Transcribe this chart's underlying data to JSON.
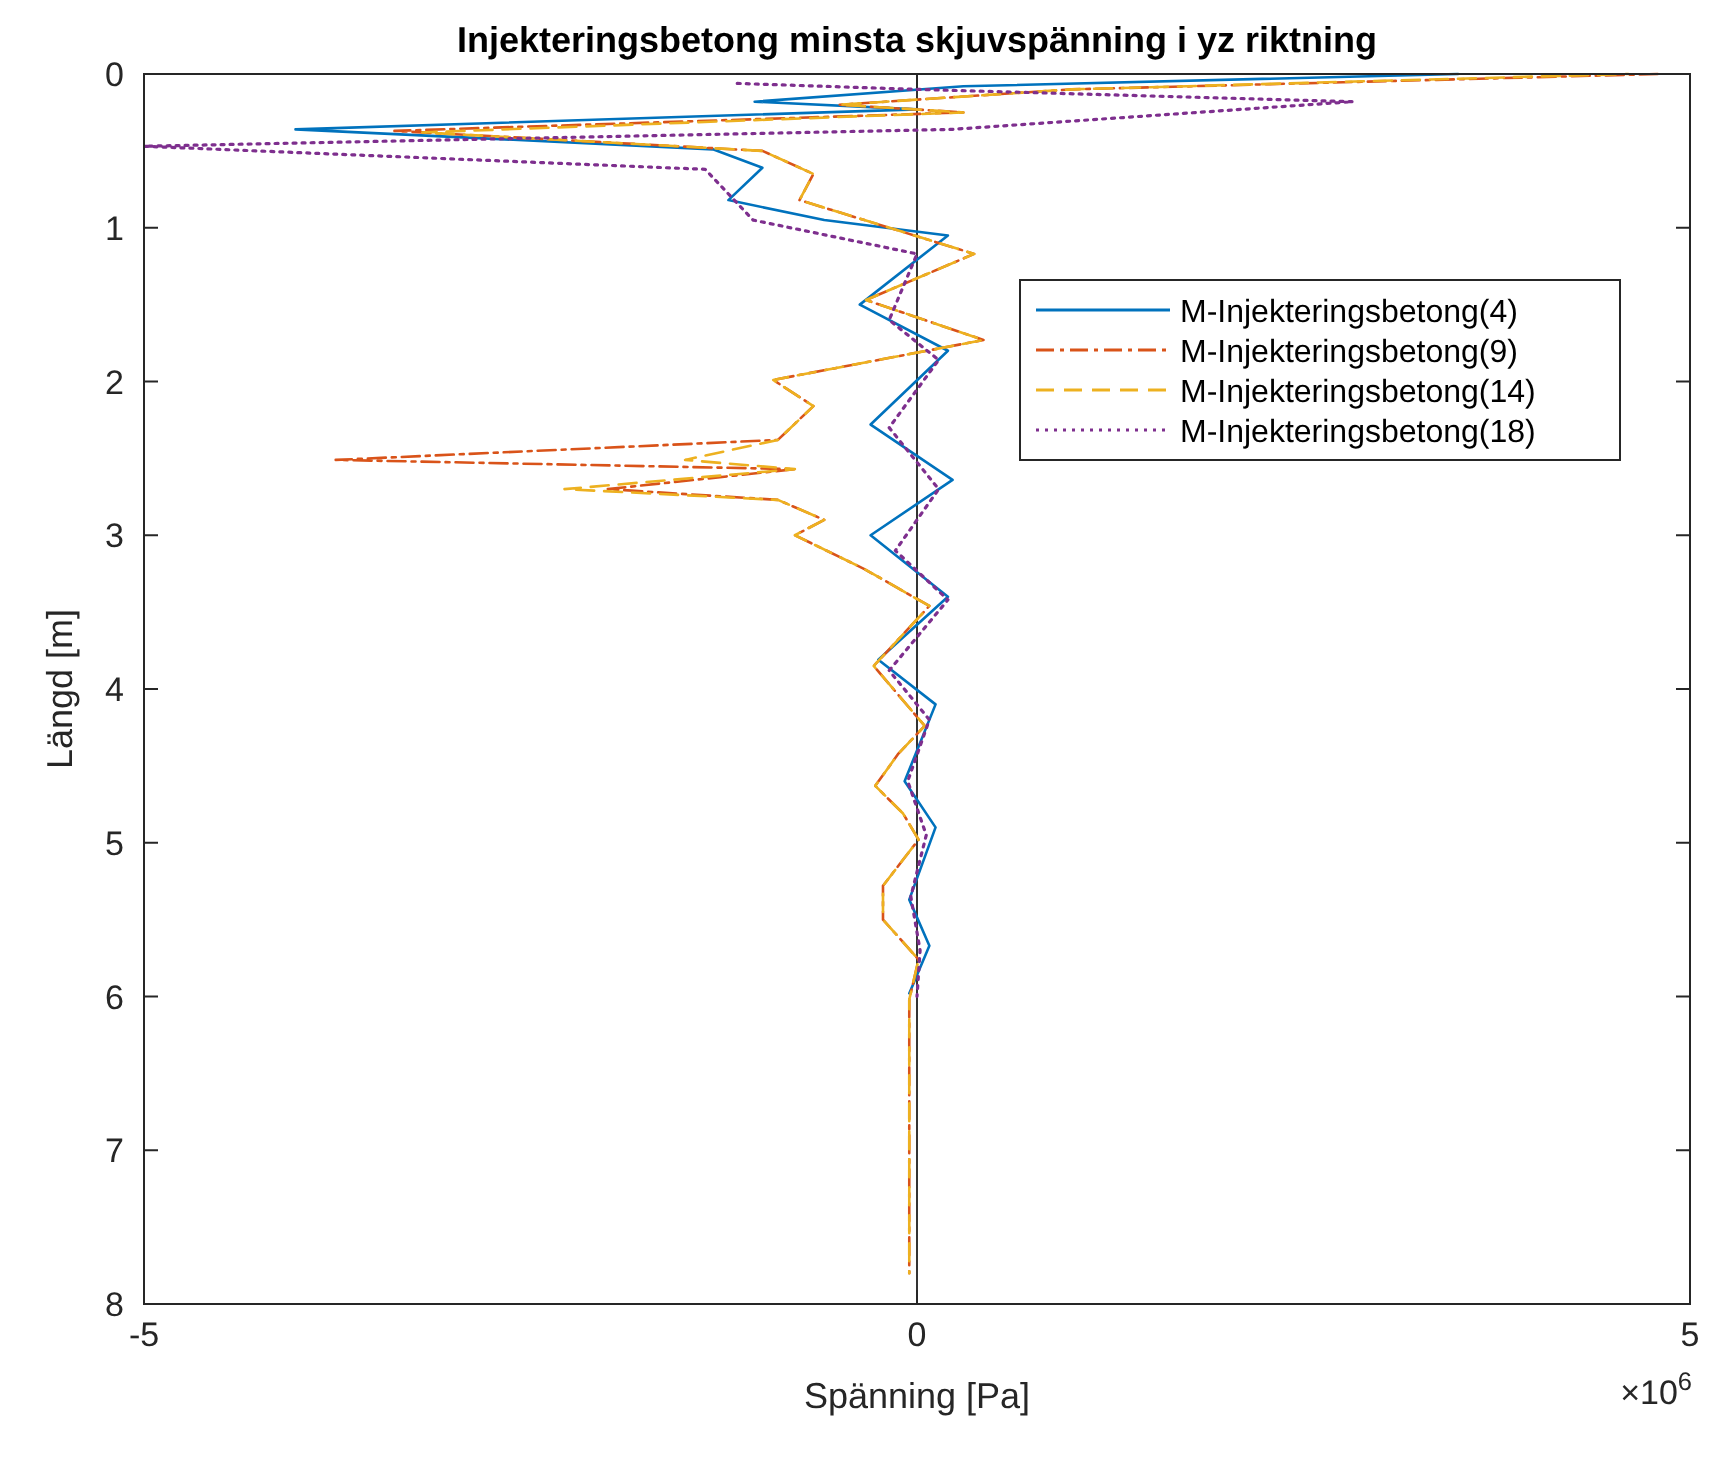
{
  "chart_data": {
    "type": "line",
    "title": "Injekteringsbetong minsta skjuvspänning i yz riktning",
    "xlabel": "Spänning [Pa]",
    "ylabel": "Längd [m]",
    "xlim": [
      -5,
      5
    ],
    "xticks": [
      -5,
      0,
      5
    ],
    "ylim": [
      8,
      0
    ],
    "yticks": [
      0,
      1,
      2,
      3,
      4,
      5,
      6,
      7,
      8
    ],
    "grid": false,
    "legend": "right",
    "annotations": [
      "×10$^{6}$"
    ],
    "ref_lines": [
      {
        "axis": "x",
        "value": 0,
        "color": "#000000"
      }
    ],
    "series": [
      {
        "name": "M-Injekteringsbetong(4)",
        "color": "#0072bd",
        "line_style": "solid",
        "x": [
          3.5,
          0.3,
          -1.05,
          0,
          -4.02,
          -1.32,
          -1.0,
          -1.22,
          -0.6,
          0.2,
          -0.37,
          0.2,
          -0.3,
          0.23,
          -0.3,
          0.2,
          -0.25,
          0.12,
          -0.08,
          0.12,
          -0.05,
          0.08,
          -0.05
        ],
        "values": [
          0,
          0.08,
          0.18,
          0.23,
          0.36,
          0.49,
          0.61,
          0.82,
          0.95,
          1.05,
          1.5,
          1.8,
          2.28,
          2.64,
          3.0,
          3.4,
          3.81,
          4.1,
          4.6,
          4.9,
          5.37,
          5.67,
          5.98
        ]
      },
      {
        "name": "M-Injekteringsbetong(9)",
        "color": "#d95319",
        "line_style": "dashdot",
        "x": [
          4.8,
          1.0,
          -0.5,
          0.3,
          -3.38,
          -1.0,
          -0.67,
          -0.76,
          0.37,
          -0.33,
          0.43,
          -0.93,
          -0.67,
          -0.9,
          -3.76,
          -0.79,
          -2.0,
          -0.9,
          -0.6,
          -0.79,
          -0.34,
          0.08,
          -0.28,
          0.05,
          -0.12,
          -0.27,
          -0.09,
          0.01,
          -0.22,
          -0.22,
          0.01,
          -0.05,
          -0.05
        ],
        "values": [
          0,
          0.1,
          0.2,
          0.25,
          0.37,
          0.5,
          0.65,
          0.82,
          1.17,
          1.47,
          1.73,
          1.99,
          2.16,
          2.38,
          2.51,
          2.57,
          2.7,
          2.77,
          2.9,
          3.0,
          3.22,
          3.46,
          3.85,
          4.24,
          4.42,
          4.63,
          4.81,
          4.98,
          5.28,
          5.5,
          5.76,
          6.02,
          7.8
        ]
      },
      {
        "name": "M-Injekteringsbetong(14)",
        "color": "#edb120",
        "line_style": "dashed",
        "x": [
          4.6,
          1.0,
          -0.5,
          0.3,
          -3.2,
          -1.0,
          -0.67,
          -0.76,
          0.37,
          -0.33,
          0.43,
          -0.93,
          -0.67,
          -0.9,
          -1.5,
          -0.79,
          -2.28,
          -0.9,
          -0.6,
          -0.79,
          -0.34,
          0.08,
          -0.28,
          0.05,
          -0.12,
          -0.27,
          -0.09,
          0.01,
          -0.22,
          -0.22,
          0.01,
          -0.05,
          -0.05
        ],
        "values": [
          0,
          0.1,
          0.2,
          0.25,
          0.38,
          0.5,
          0.65,
          0.82,
          1.17,
          1.47,
          1.73,
          1.99,
          2.16,
          2.38,
          2.51,
          2.57,
          2.7,
          2.77,
          2.9,
          3.0,
          3.22,
          3.46,
          3.85,
          4.24,
          4.42,
          4.63,
          4.81,
          4.98,
          5.28,
          5.5,
          5.76,
          6.02,
          7.8
        ]
      },
      {
        "name": "M-Injekteringsbetong(18)",
        "color": "#7e2f8e",
        "line_style": "dotted",
        "x": [
          -1.2,
          0.0,
          2.82,
          0.23,
          -5.0,
          -1.37,
          -1.06,
          0,
          -0.18,
          0.14,
          -0.18,
          0.14,
          -0.14,
          0.2,
          -0.18,
          0.08,
          -0.06,
          0.06,
          -0.04,
          0.02,
          0
        ],
        "values": [
          0.06,
          0.1,
          0.18,
          0.36,
          0.47,
          0.62,
          0.95,
          1.17,
          1.6,
          1.86,
          2.3,
          2.7,
          3.1,
          3.42,
          3.88,
          4.2,
          4.6,
          4.95,
          5.35,
          5.7,
          6.0
        ]
      }
    ]
  }
}
